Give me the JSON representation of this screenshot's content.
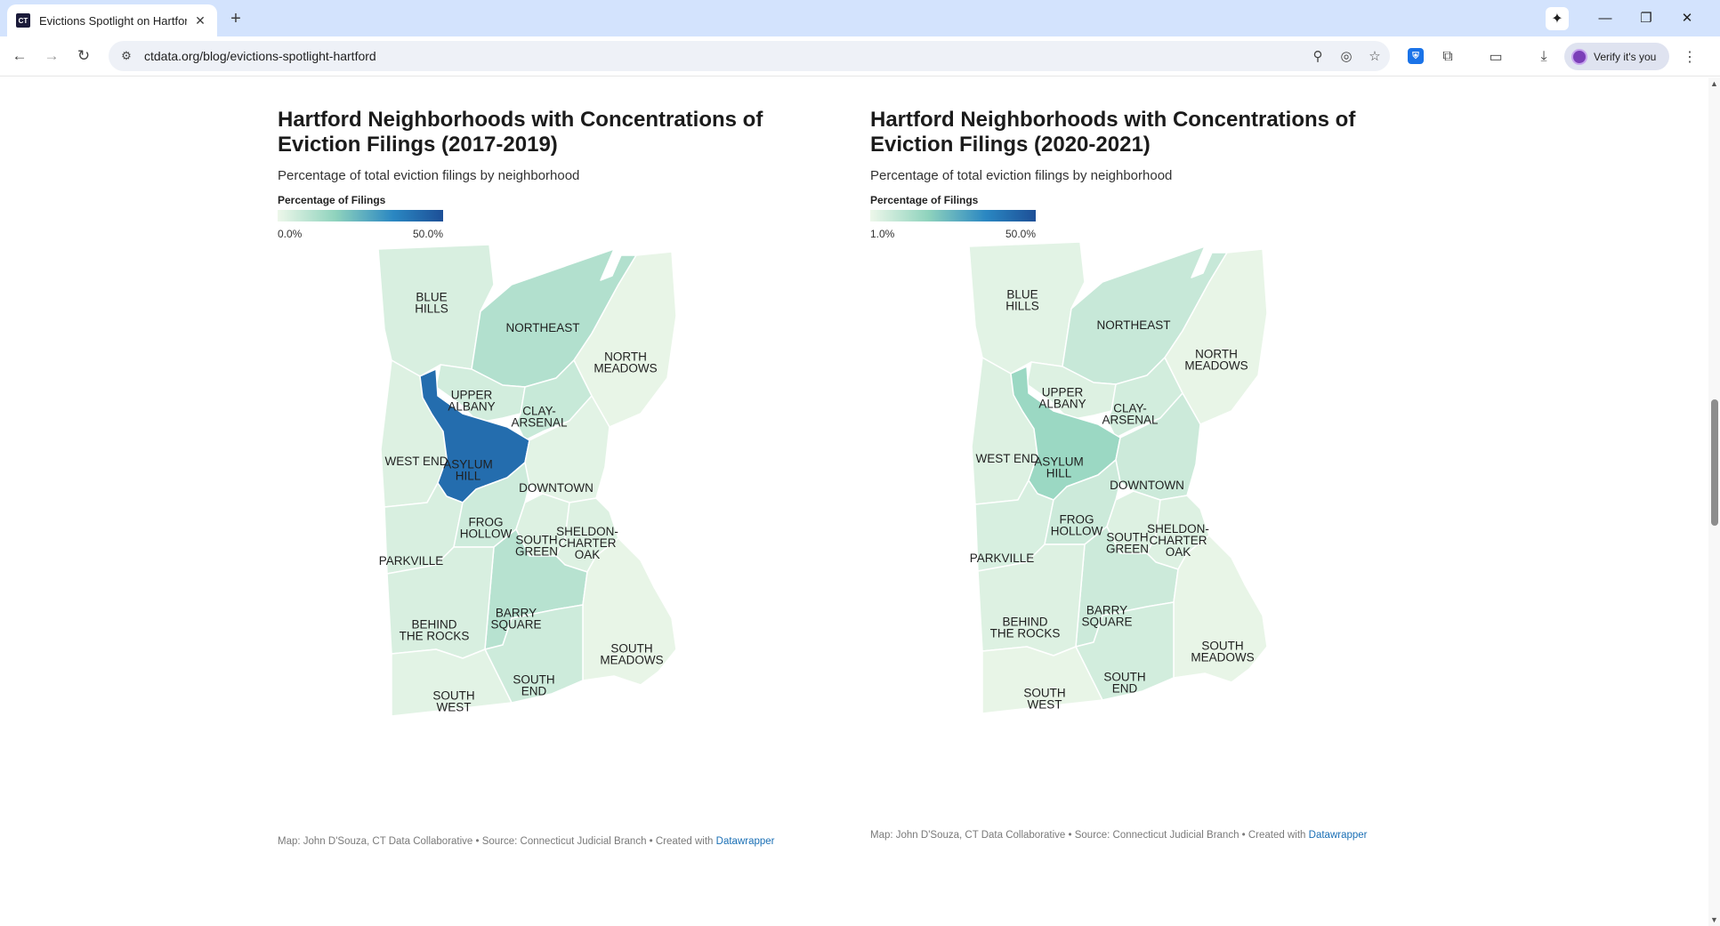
{
  "browser": {
    "tab_title": "Evictions Spotlight on Hartford",
    "favicon_text": "CT",
    "url": "ctdata.org/blog/evictions-spotlight-hartford",
    "verify_label": "Verify it's you"
  },
  "charts": [
    {
      "title": "Hartford Neighborhoods with Concentrations of Eviction Filings (2017-2019)",
      "subtitle": "Percentage of total eviction filings by neighborhood",
      "legend_title": "Percentage of Filings",
      "legend_min": "0.0%",
      "legend_max": "50.0%",
      "credit_text": "Map: John D'Souza, CT Data Collaborative • Source: Connecticut Judicial Branch • Created with",
      "credit_link": "Datawrapper"
    },
    {
      "title": "Hartford Neighborhoods with Concentrations of Eviction Filings (2020-2021)",
      "subtitle": "Percentage of total eviction filings by neighborhood",
      "legend_title": "Percentage of Filings",
      "legend_min": "1.0%",
      "legend_max": "50.0%",
      "credit_text": "Map: John D'Souza, CT Data Collaborative • Source: Connecticut Judicial Branch  • Created with",
      "credit_link": "Datawrapper"
    }
  ],
  "neighborhood_labels": {
    "blue_hills": [
      "BLUE",
      "HILLS"
    ],
    "northeast": [
      "NORTHEAST"
    ],
    "north_meadows": [
      "NORTH",
      "MEADOWS"
    ],
    "upper_albany": [
      "UPPER",
      "ALBANY"
    ],
    "clay_arsenal": [
      "CLAY-",
      "ARSENAL"
    ],
    "west_end": [
      "WEST END"
    ],
    "asylum_hill": [
      "ASYLUM",
      "HILL"
    ],
    "downtown": [
      "DOWNTOWN"
    ],
    "parkville": [
      "PARKVILLE"
    ],
    "frog_hollow": [
      "FROG",
      "HOLLOW"
    ],
    "south_green": [
      "SOUTH",
      "GREEN"
    ],
    "sheldon_charter_oak": [
      "SHELDON-",
      "CHARTER",
      "OAK"
    ],
    "barry_square": [
      "BARRY",
      "SQUARE"
    ],
    "behind_the_rocks": [
      "BEHIND",
      "THE ROCKS"
    ],
    "south_meadows": [
      "SOUTH",
      "MEADOWS"
    ],
    "south_end": [
      "SOUTH",
      "END"
    ],
    "south_west": [
      "SOUTH",
      "WEST"
    ]
  },
  "chart_data": [
    {
      "type": "choropleth",
      "title": "Hartford Neighborhoods with Concentrations of Eviction Filings (2017-2019)",
      "value_label": "Percentage of Filings",
      "scale_range": [
        0.0,
        50.0
      ],
      "scale_colors": [
        "#edf7ea",
        "#8fd3bd",
        "#2a87c2",
        "#1d4f97"
      ],
      "values_percent_estimated": {
        "blue_hills": 4,
        "northeast": 11,
        "north_meadows": 1,
        "upper_albany": 5,
        "clay_arsenal": 7,
        "west_end": 3,
        "asylum_hill": 42,
        "downtown": 2,
        "parkville": 4,
        "frog_hollow": 6,
        "south_green": 3,
        "sheldon_charter_oak": 3,
        "barry_square": 10,
        "behind_the_rocks": 4,
        "south_meadows": 1,
        "south_end": 6,
        "south_west": 2
      }
    },
    {
      "type": "choropleth",
      "title": "Hartford Neighborhoods with Concentrations of Eviction Filings (2020-2021)",
      "value_label": "Percentage of Filings",
      "scale_range": [
        1.0,
        50.0
      ],
      "scale_colors": [
        "#edf7ea",
        "#8fd3bd",
        "#2a87c2",
        "#1d4f97"
      ],
      "values_percent_estimated": {
        "blue_hills": 3,
        "northeast": 8,
        "north_meadows": 2,
        "upper_albany": 4,
        "clay_arsenal": 6,
        "west_end": 4,
        "asylum_hill": 16,
        "downtown": 7,
        "parkville": 5,
        "frog_hollow": 7,
        "south_green": 4,
        "sheldon_charter_oak": 4,
        "barry_square": 7,
        "behind_the_rocks": 4,
        "south_meadows": 2,
        "south_end": 6,
        "south_west": 2
      }
    }
  ]
}
